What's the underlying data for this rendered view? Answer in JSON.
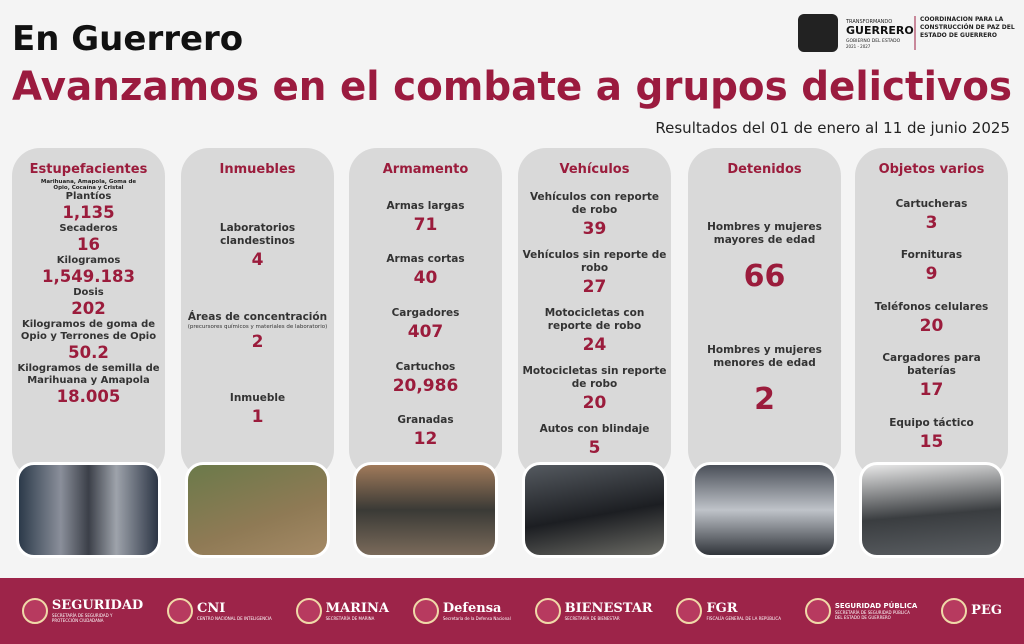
{
  "header": {
    "title": "En Guerrero",
    "headline": "Avanzamos en el combate a grupos delictivos",
    "subtitle": "Resultados del 01 de enero al 11 de junio 2025"
  },
  "logo": {
    "line1": "TRANSFORMANDO",
    "line2": "GUERRERO",
    "line3": "GOBIERNO DEL ESTADO",
    "line4": "2021 - 2027",
    "agency": "COORDINACIÓN PARA LA CONSTRUCCIÓN DE PAZ DEL ESTADO DE GUERRERO"
  },
  "cards": [
    {
      "title": "Estupefacientes",
      "note": "Marihuana, Amapola, Goma de Opio, Cocaína y Cristal",
      "items": [
        {
          "label": "Plantíos",
          "value": "1,135"
        },
        {
          "label": "Secaderos",
          "value": "16"
        },
        {
          "label": "Kilogramos",
          "value": "1,549.183"
        },
        {
          "label": "Dosis",
          "value": "202"
        },
        {
          "label": "Kilogramos de goma de Opio y Terrones de Opio",
          "value": "50.2"
        },
        {
          "label": "Kilogramos de semilla de Marihuana y Amapola",
          "value": "18.005"
        }
      ]
    },
    {
      "title": "Inmuebles",
      "items": [
        {
          "label": "Laboratorios clandestinos",
          "value": "4"
        },
        {
          "label": "Áreas de concentración",
          "note": "(precursores químicos y materiales de laboratorio)",
          "value": "2"
        },
        {
          "label": "Inmueble",
          "value": "1"
        }
      ]
    },
    {
      "title": "Armamento",
      "items": [
        {
          "label": "Armas largas",
          "value": "71"
        },
        {
          "label": "Armas cortas",
          "value": "40"
        },
        {
          "label": "Cargadores",
          "value": "407"
        },
        {
          "label": "Cartuchos",
          "value": "20,986"
        },
        {
          "label": "Granadas",
          "value": "12"
        }
      ]
    },
    {
      "title": "Vehículos",
      "items": [
        {
          "label": "Vehículos con reporte de robo",
          "value": "39"
        },
        {
          "label": "Vehículos sin reporte de robo",
          "value": "27"
        },
        {
          "label": "Motocicletas con reporte de robo",
          "value": "24"
        },
        {
          "label": "Motocicletas sin reporte de robo",
          "value": "20"
        },
        {
          "label": "Autos con blindaje",
          "value": "5"
        }
      ]
    },
    {
      "title": "Detenidos",
      "items": [
        {
          "label": "Hombres y mujeres mayores de edad",
          "value": "66"
        },
        {
          "label": "Hombres y mujeres menores de edad",
          "value": "2"
        }
      ]
    },
    {
      "title": "Objetos varios",
      "items": [
        {
          "label": "Cartucheras",
          "value": "3"
        },
        {
          "label": "Fornituras",
          "value": "9"
        },
        {
          "label": "Teléfonos celulares",
          "value": "20"
        },
        {
          "label": "Cargadores para baterías",
          "value": "17"
        },
        {
          "label": "Equipo táctico",
          "value": "15"
        }
      ]
    }
  ],
  "footer": [
    {
      "name": "SEGURIDAD",
      "sub": "SECRETARÍA DE SEGURIDAD Y PROTECCIÓN CIUDADANA"
    },
    {
      "name": "CNI",
      "sub": "CENTRO NACIONAL DE INTELIGENCIA"
    },
    {
      "name": "MARINA",
      "sub": "SECRETARÍA DE MARINA"
    },
    {
      "name": "Defensa",
      "sub": "Secretaría de la Defensa Nacional"
    },
    {
      "name": "BIENESTAR",
      "sub": "SECRETARÍA DE BIENESTAR"
    },
    {
      "name": "FGR",
      "sub": "FISCALÍA GENERAL DE LA REPÚBLICA"
    },
    {
      "name": "SEGURIDAD PÚBLICA",
      "sub": "SECRETARÍA DE SEGURIDAD PÚBLICA DEL ESTADO DE GUERRERO"
    },
    {
      "name": "PEG",
      "sub": ""
    }
  ]
}
